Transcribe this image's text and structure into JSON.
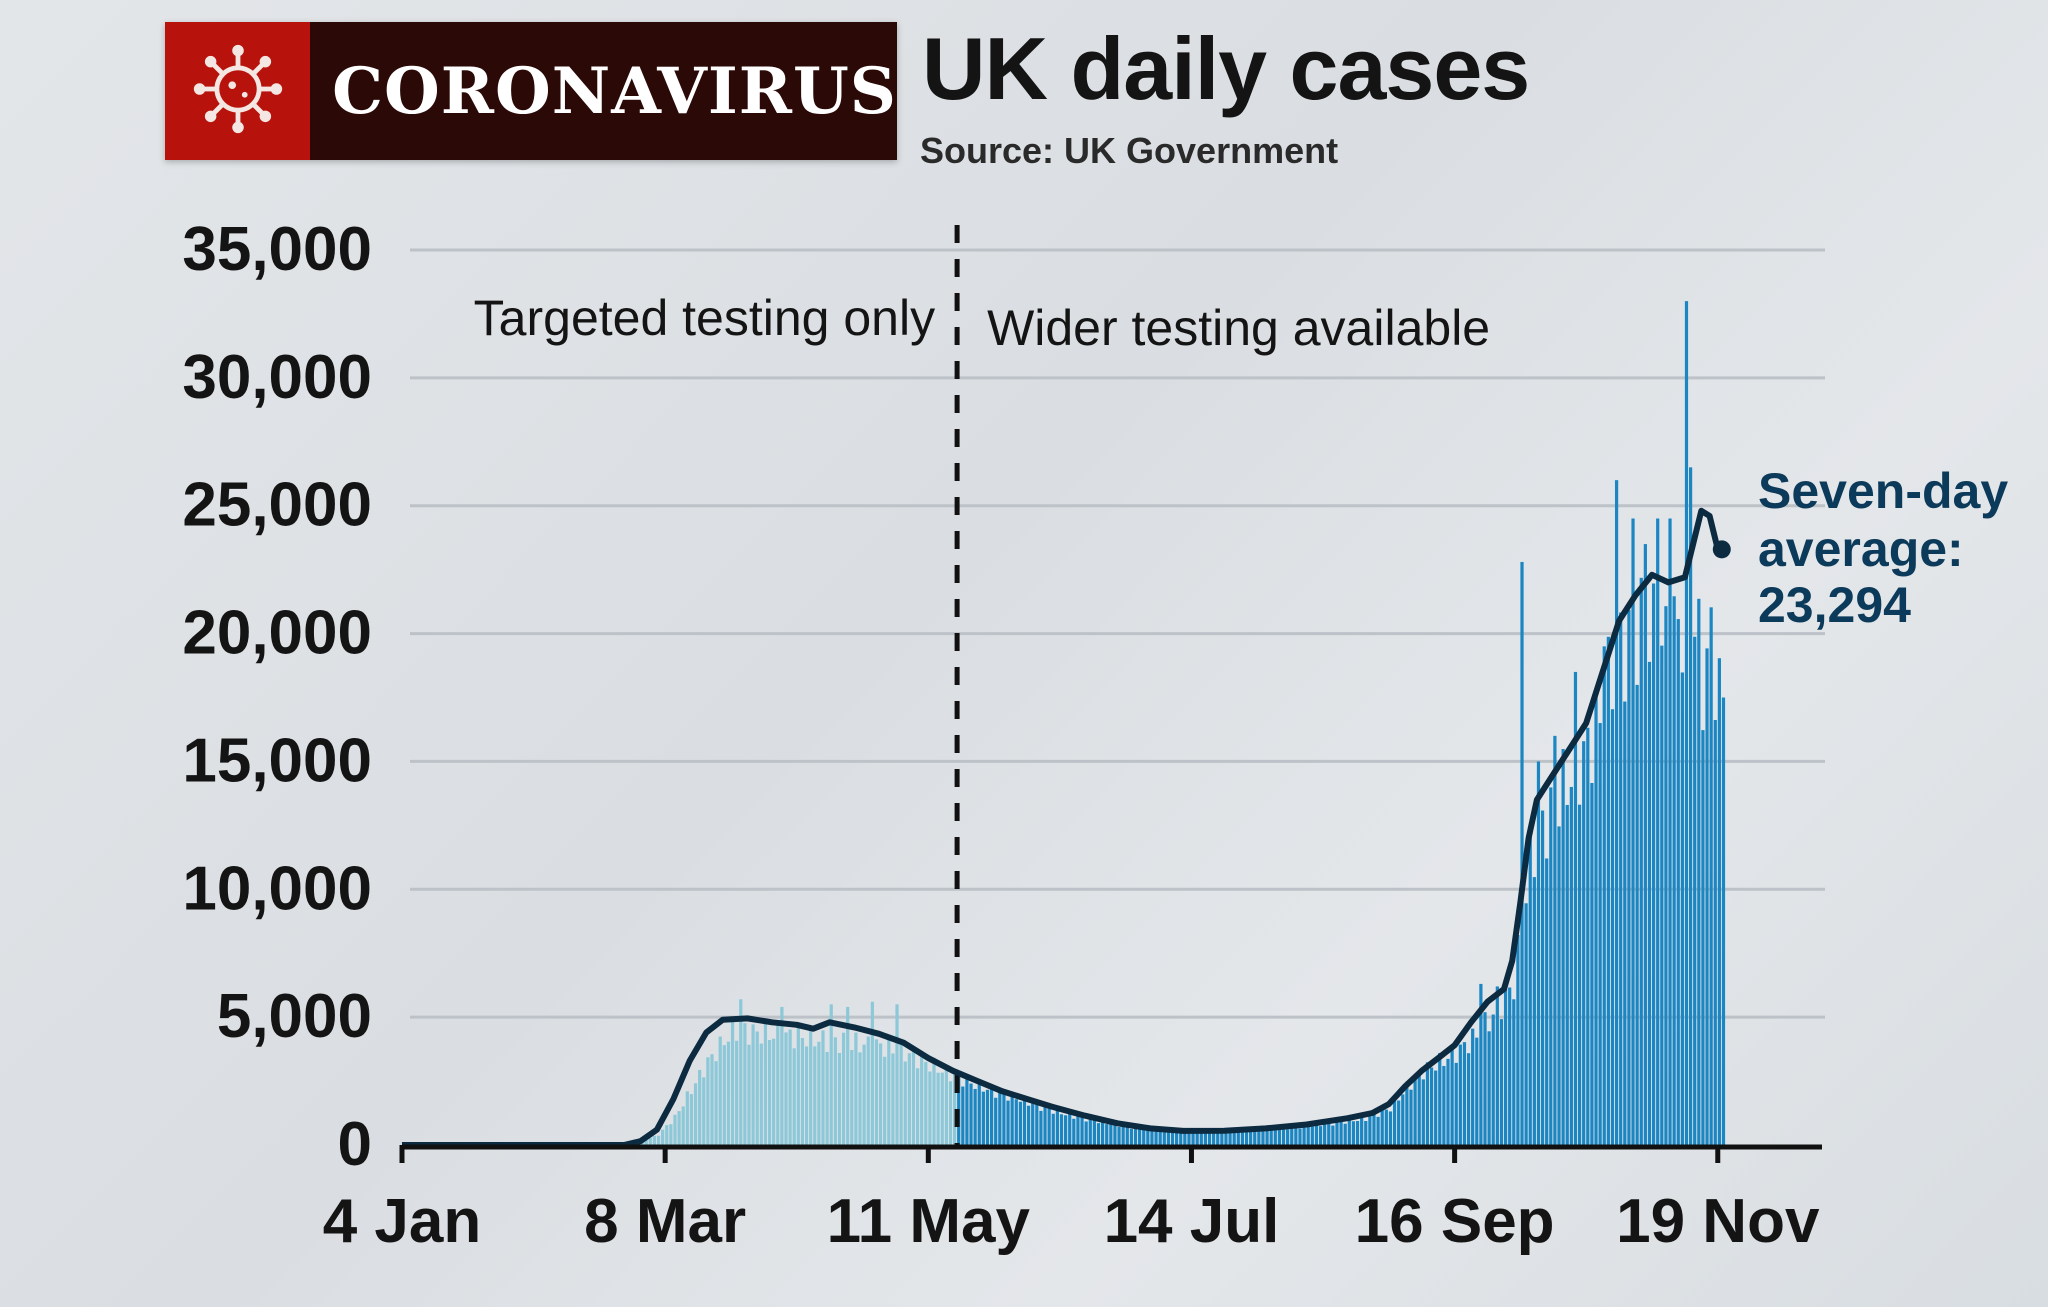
{
  "header": {
    "badge_label": "CORONAVIRUS",
    "title": "UK daily cases",
    "source": "Source: UK Government"
  },
  "colors": {
    "badge_red": "#b8120c",
    "badge_dark": "#2a0907",
    "bars_before": "#8cc8d8",
    "bars_after": "#1b86c2",
    "average_line": "#0c2a40",
    "text": "#141414",
    "annotation": "#0c3a5a",
    "gridline": "#bcc2c8"
  },
  "icons": {
    "badge_icon": "virus-icon"
  },
  "chart_data": {
    "type": "bar",
    "title": "UK daily cases",
    "subtitle": "Source: UK Government",
    "xlabel": "",
    "ylabel": "",
    "ylim": [
      0,
      35000
    ],
    "yticks": [
      0,
      5000,
      10000,
      15000,
      20000,
      25000,
      30000,
      35000
    ],
    "ytick_labels": [
      "0",
      "5,000",
      "10,000",
      "15,000",
      "20,000",
      "25,000",
      "30,000",
      "35,000"
    ],
    "x_start_date": "4 Jan",
    "x_end_day": 321,
    "x_ticks": [
      {
        "day": 0,
        "label": "4 Jan"
      },
      {
        "day": 64,
        "label": "8 Mar"
      },
      {
        "day": 128,
        "label": "11 May"
      },
      {
        "day": 192,
        "label": "14 Jul"
      },
      {
        "day": 256,
        "label": "16 Sep"
      },
      {
        "day": 320,
        "label": "19 Nov"
      }
    ],
    "grid": true,
    "divider": {
      "day": 135,
      "left_label": "Targeted testing only",
      "right_label": "Wider testing available"
    },
    "series": [
      {
        "kind": "bars",
        "daily_keypoints": [
          [
            0,
            0
          ],
          [
            54,
            0
          ],
          [
            58,
            100
          ],
          [
            62,
            450
          ],
          [
            66,
            1200
          ],
          [
            70,
            2400
          ],
          [
            74,
            3600
          ],
          [
            78,
            4500
          ],
          [
            80,
            5000
          ],
          [
            84,
            4900
          ],
          [
            90,
            4800
          ],
          [
            96,
            4700
          ],
          [
            100,
            4600
          ],
          [
            104,
            4500
          ],
          [
            110,
            4400
          ],
          [
            116,
            4300
          ],
          [
            122,
            4000
          ],
          [
            128,
            3500
          ],
          [
            134,
            3000
          ],
          [
            138,
            2700
          ],
          [
            144,
            2300
          ],
          [
            150,
            2000
          ],
          [
            156,
            1600
          ],
          [
            162,
            1300
          ],
          [
            170,
            1000
          ],
          [
            178,
            750
          ],
          [
            186,
            600
          ],
          [
            194,
            580
          ],
          [
            200,
            600
          ],
          [
            210,
            700
          ],
          [
            218,
            800
          ],
          [
            226,
            950
          ],
          [
            234,
            1150
          ],
          [
            240,
            1600
          ],
          [
            244,
            2500
          ],
          [
            248,
            3200
          ],
          [
            252,
            3600
          ],
          [
            256,
            4000
          ],
          [
            260,
            4600
          ],
          [
            264,
            5400
          ],
          [
            268,
            6400
          ],
          [
            270,
            7000
          ],
          [
            272,
            9500
          ],
          [
            274,
            12500
          ],
          [
            278,
            14000
          ],
          [
            282,
            15500
          ],
          [
            286,
            16500
          ],
          [
            290,
            18000
          ],
          [
            294,
            20500
          ],
          [
            298,
            22000
          ],
          [
            302,
            22500
          ],
          [
            306,
            21500
          ],
          [
            310,
            22500
          ],
          [
            314,
            23000
          ],
          [
            316,
            20000
          ],
          [
            318,
            22000
          ],
          [
            320,
            19500
          ]
        ],
        "spikes": [
          {
            "day": 82,
            "value": 5700
          },
          {
            "day": 92,
            "value": 5400
          },
          {
            "day": 104,
            "value": 5500
          },
          {
            "day": 108,
            "value": 5400
          },
          {
            "day": 114,
            "value": 5600
          },
          {
            "day": 120,
            "value": 5500
          },
          {
            "day": 262,
            "value": 6300
          },
          {
            "day": 266,
            "value": 6200
          },
          {
            "day": 272,
            "value": 22800
          },
          {
            "day": 276,
            "value": 15000
          },
          {
            "day": 280,
            "value": 16000
          },
          {
            "day": 285,
            "value": 18500
          },
          {
            "day": 292,
            "value": 19500
          },
          {
            "day": 295,
            "value": 26000
          },
          {
            "day": 299,
            "value": 24500
          },
          {
            "day": 302,
            "value": 23500
          },
          {
            "day": 305,
            "value": 24500
          },
          {
            "day": 308,
            "value": 24500
          },
          {
            "day": 312,
            "value": 33000
          },
          {
            "day": 313,
            "value": 26500
          }
        ]
      },
      {
        "kind": "seven_day_average",
        "points": [
          [
            0,
            0
          ],
          [
            54,
            0
          ],
          [
            58,
            150
          ],
          [
            62,
            600
          ],
          [
            66,
            1800
          ],
          [
            70,
            3300
          ],
          [
            74,
            4400
          ],
          [
            78,
            4900
          ],
          [
            84,
            4950
          ],
          [
            90,
            4800
          ],
          [
            96,
            4700
          ],
          [
            100,
            4550
          ],
          [
            104,
            4800
          ],
          [
            110,
            4600
          ],
          [
            116,
            4350
          ],
          [
            122,
            4000
          ],
          [
            128,
            3400
          ],
          [
            134,
            2900
          ],
          [
            140,
            2500
          ],
          [
            146,
            2100
          ],
          [
            152,
            1800
          ],
          [
            158,
            1500
          ],
          [
            166,
            1150
          ],
          [
            174,
            850
          ],
          [
            182,
            650
          ],
          [
            190,
            550
          ],
          [
            200,
            560
          ],
          [
            210,
            650
          ],
          [
            220,
            800
          ],
          [
            230,
            1050
          ],
          [
            236,
            1250
          ],
          [
            240,
            1600
          ],
          [
            244,
            2300
          ],
          [
            248,
            2900
          ],
          [
            252,
            3400
          ],
          [
            256,
            3900
          ],
          [
            260,
            4800
          ],
          [
            264,
            5600
          ],
          [
            268,
            6100
          ],
          [
            270,
            7200
          ],
          [
            272,
            9500
          ],
          [
            274,
            12000
          ],
          [
            276,
            13500
          ],
          [
            280,
            14500
          ],
          [
            284,
            15500
          ],
          [
            288,
            16500
          ],
          [
            292,
            18500
          ],
          [
            296,
            20500
          ],
          [
            300,
            21500
          ],
          [
            304,
            22300
          ],
          [
            308,
            22000
          ],
          [
            312,
            22200
          ],
          [
            314,
            23500
          ],
          [
            316,
            24800
          ],
          [
            318,
            24600
          ],
          [
            320,
            23294
          ]
        ]
      }
    ],
    "annotation": {
      "label": "Seven-day average:",
      "value_label": "23,294",
      "value": 23294,
      "day": 320
    }
  }
}
